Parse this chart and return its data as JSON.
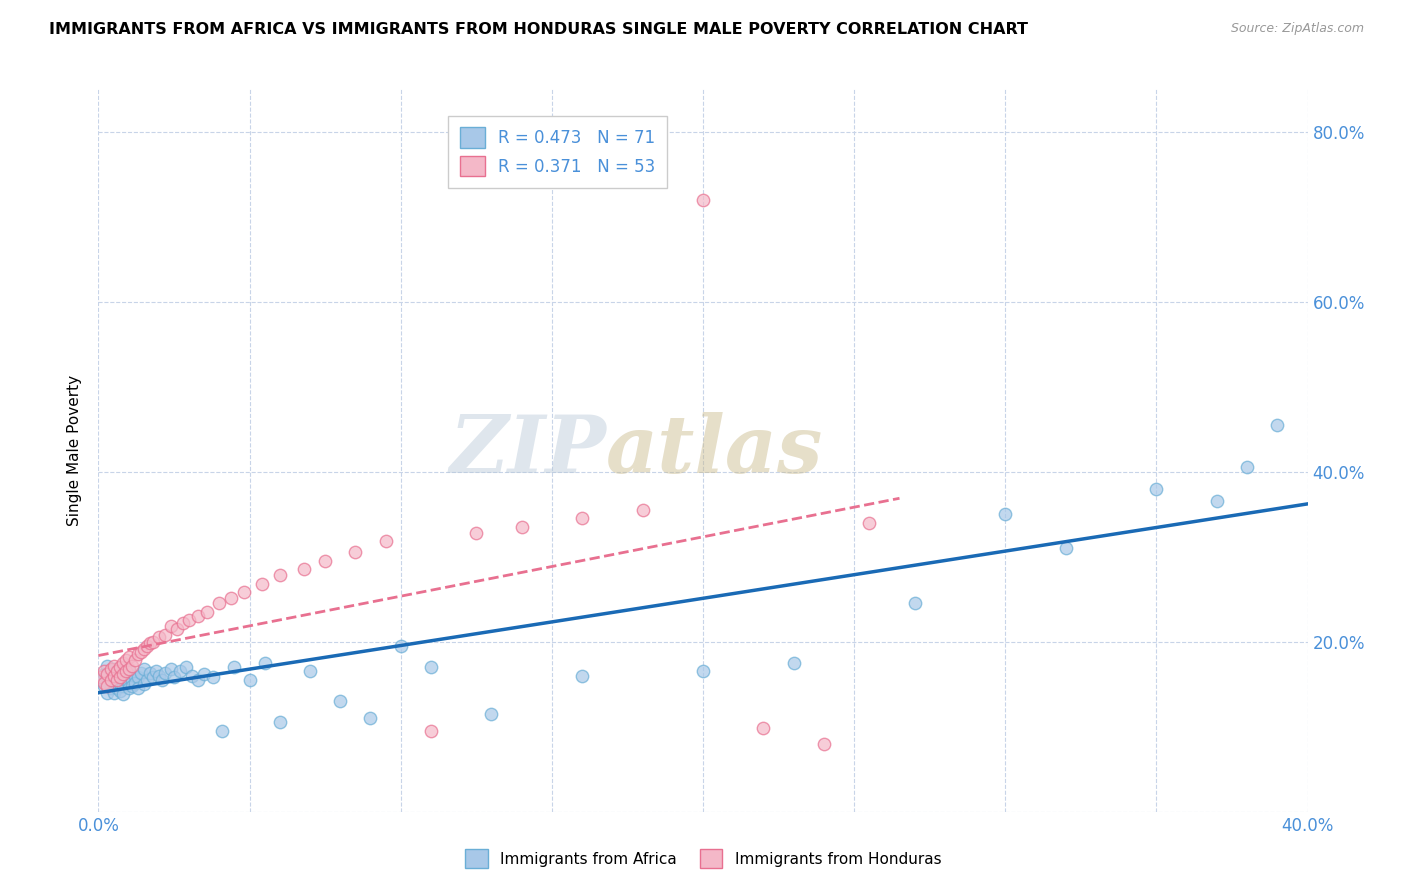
{
  "title": "IMMIGRANTS FROM AFRICA VS IMMIGRANTS FROM HONDURAS SINGLE MALE POVERTY CORRELATION CHART",
  "source": "Source: ZipAtlas.com",
  "ylabel": "Single Male Poverty",
  "xlim": [
    0.0,
    0.4
  ],
  "ylim": [
    0.0,
    0.85
  ],
  "R_africa": 0.473,
  "N_africa": 71,
  "R_honduras": 0.371,
  "N_honduras": 53,
  "color_africa": "#a8c8e8",
  "color_africa_edge": "#6aaed6",
  "color_honduras": "#f4b8c8",
  "color_honduras_edge": "#e87090",
  "color_africa_line": "#1a6ab5",
  "color_honduras_line": "#e87090",
  "watermark_text": "ZIPatlas",
  "africa_x": [
    0.001,
    0.002,
    0.002,
    0.003,
    0.003,
    0.003,
    0.004,
    0.004,
    0.004,
    0.005,
    0.005,
    0.005,
    0.006,
    0.006,
    0.006,
    0.007,
    0.007,
    0.007,
    0.008,
    0.008,
    0.008,
    0.009,
    0.009,
    0.01,
    0.01,
    0.01,
    0.011,
    0.011,
    0.012,
    0.012,
    0.013,
    0.013,
    0.014,
    0.015,
    0.015,
    0.016,
    0.017,
    0.018,
    0.019,
    0.02,
    0.021,
    0.022,
    0.024,
    0.025,
    0.027,
    0.029,
    0.031,
    0.033,
    0.035,
    0.038,
    0.041,
    0.045,
    0.05,
    0.055,
    0.06,
    0.07,
    0.08,
    0.09,
    0.1,
    0.11,
    0.13,
    0.16,
    0.2,
    0.23,
    0.27,
    0.3,
    0.32,
    0.35,
    0.37,
    0.38,
    0.39
  ],
  "africa_y": [
    0.155,
    0.148,
    0.162,
    0.14,
    0.158,
    0.172,
    0.145,
    0.163,
    0.155,
    0.15,
    0.168,
    0.14,
    0.158,
    0.145,
    0.165,
    0.152,
    0.163,
    0.142,
    0.156,
    0.148,
    0.138,
    0.16,
    0.155,
    0.15,
    0.145,
    0.165,
    0.155,
    0.148,
    0.16,
    0.152,
    0.158,
    0.145,
    0.163,
    0.15,
    0.168,
    0.155,
    0.163,
    0.158,
    0.165,
    0.16,
    0.155,
    0.163,
    0.168,
    0.158,
    0.165,
    0.17,
    0.16,
    0.155,
    0.162,
    0.158,
    0.095,
    0.17,
    0.155,
    0.175,
    0.105,
    0.165,
    0.13,
    0.11,
    0.195,
    0.17,
    0.115,
    0.16,
    0.165,
    0.175,
    0.245,
    0.35,
    0.31,
    0.38,
    0.365,
    0.405,
    0.455
  ],
  "honduras_x": [
    0.001,
    0.002,
    0.002,
    0.003,
    0.003,
    0.004,
    0.004,
    0.005,
    0.005,
    0.006,
    0.006,
    0.007,
    0.007,
    0.008,
    0.008,
    0.009,
    0.009,
    0.01,
    0.01,
    0.011,
    0.012,
    0.013,
    0.014,
    0.015,
    0.016,
    0.017,
    0.018,
    0.02,
    0.022,
    0.024,
    0.026,
    0.028,
    0.03,
    0.033,
    0.036,
    0.04,
    0.044,
    0.048,
    0.054,
    0.06,
    0.068,
    0.075,
    0.085,
    0.095,
    0.11,
    0.125,
    0.14,
    0.16,
    0.18,
    0.2,
    0.22,
    0.24,
    0.255
  ],
  "honduras_y": [
    0.158,
    0.152,
    0.165,
    0.148,
    0.162,
    0.155,
    0.168,
    0.16,
    0.172,
    0.155,
    0.165,
    0.158,
    0.17,
    0.162,
    0.175,
    0.165,
    0.178,
    0.168,
    0.182,
    0.172,
    0.178,
    0.185,
    0.188,
    0.192,
    0.195,
    0.198,
    0.2,
    0.205,
    0.208,
    0.218,
    0.215,
    0.222,
    0.225,
    0.23,
    0.235,
    0.245,
    0.252,
    0.258,
    0.268,
    0.278,
    0.285,
    0.295,
    0.305,
    0.318,
    0.095,
    0.328,
    0.335,
    0.345,
    0.355,
    0.72,
    0.098,
    0.08,
    0.34
  ]
}
